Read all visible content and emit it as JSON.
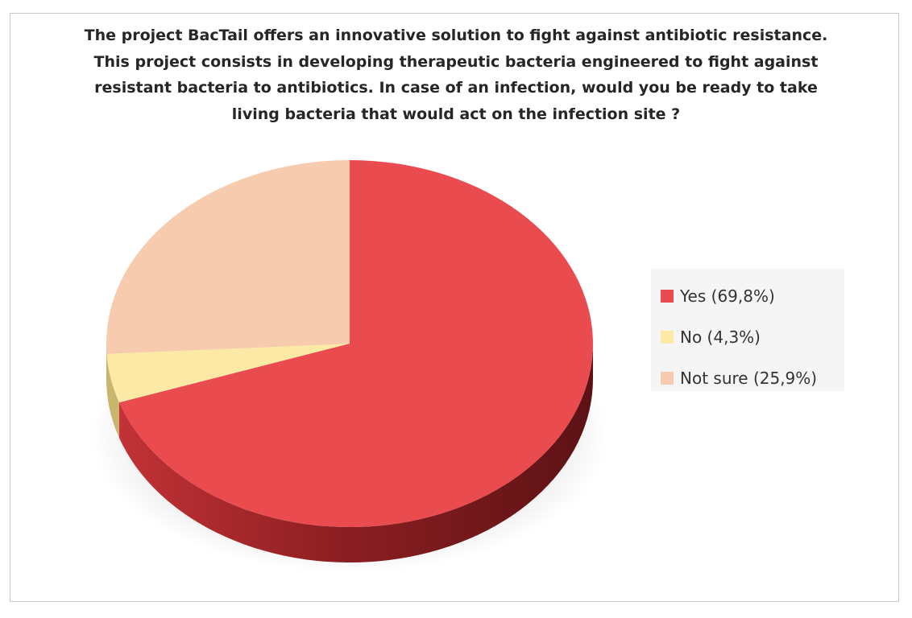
{
  "chart_data": {
    "type": "pie",
    "title": "The project BacTail offers an innovative solution to fight against antibiotic resistance. This project consists in developing therapeutic bacteria engineered to fight against resistant bacteria to antibiotics. In case of an infection, would you be ready to take living bacteria that would act on the infection site ?",
    "style": "3d-tilted",
    "legend_position": "right",
    "categories": [
      "Yes",
      "No",
      "Not sure"
    ],
    "values": [
      69.8,
      4.3,
      25.9
    ],
    "legend": [
      "Yes (69,8%)",
      "No (4,3%)",
      "Not sure (25,9%)"
    ],
    "colors": [
      "#ea4b4f",
      "#fde9a6",
      "#f7cbad"
    ],
    "side_colors": [
      "#9e2326",
      "#c9b56d",
      "#c99b7e"
    ]
  }
}
